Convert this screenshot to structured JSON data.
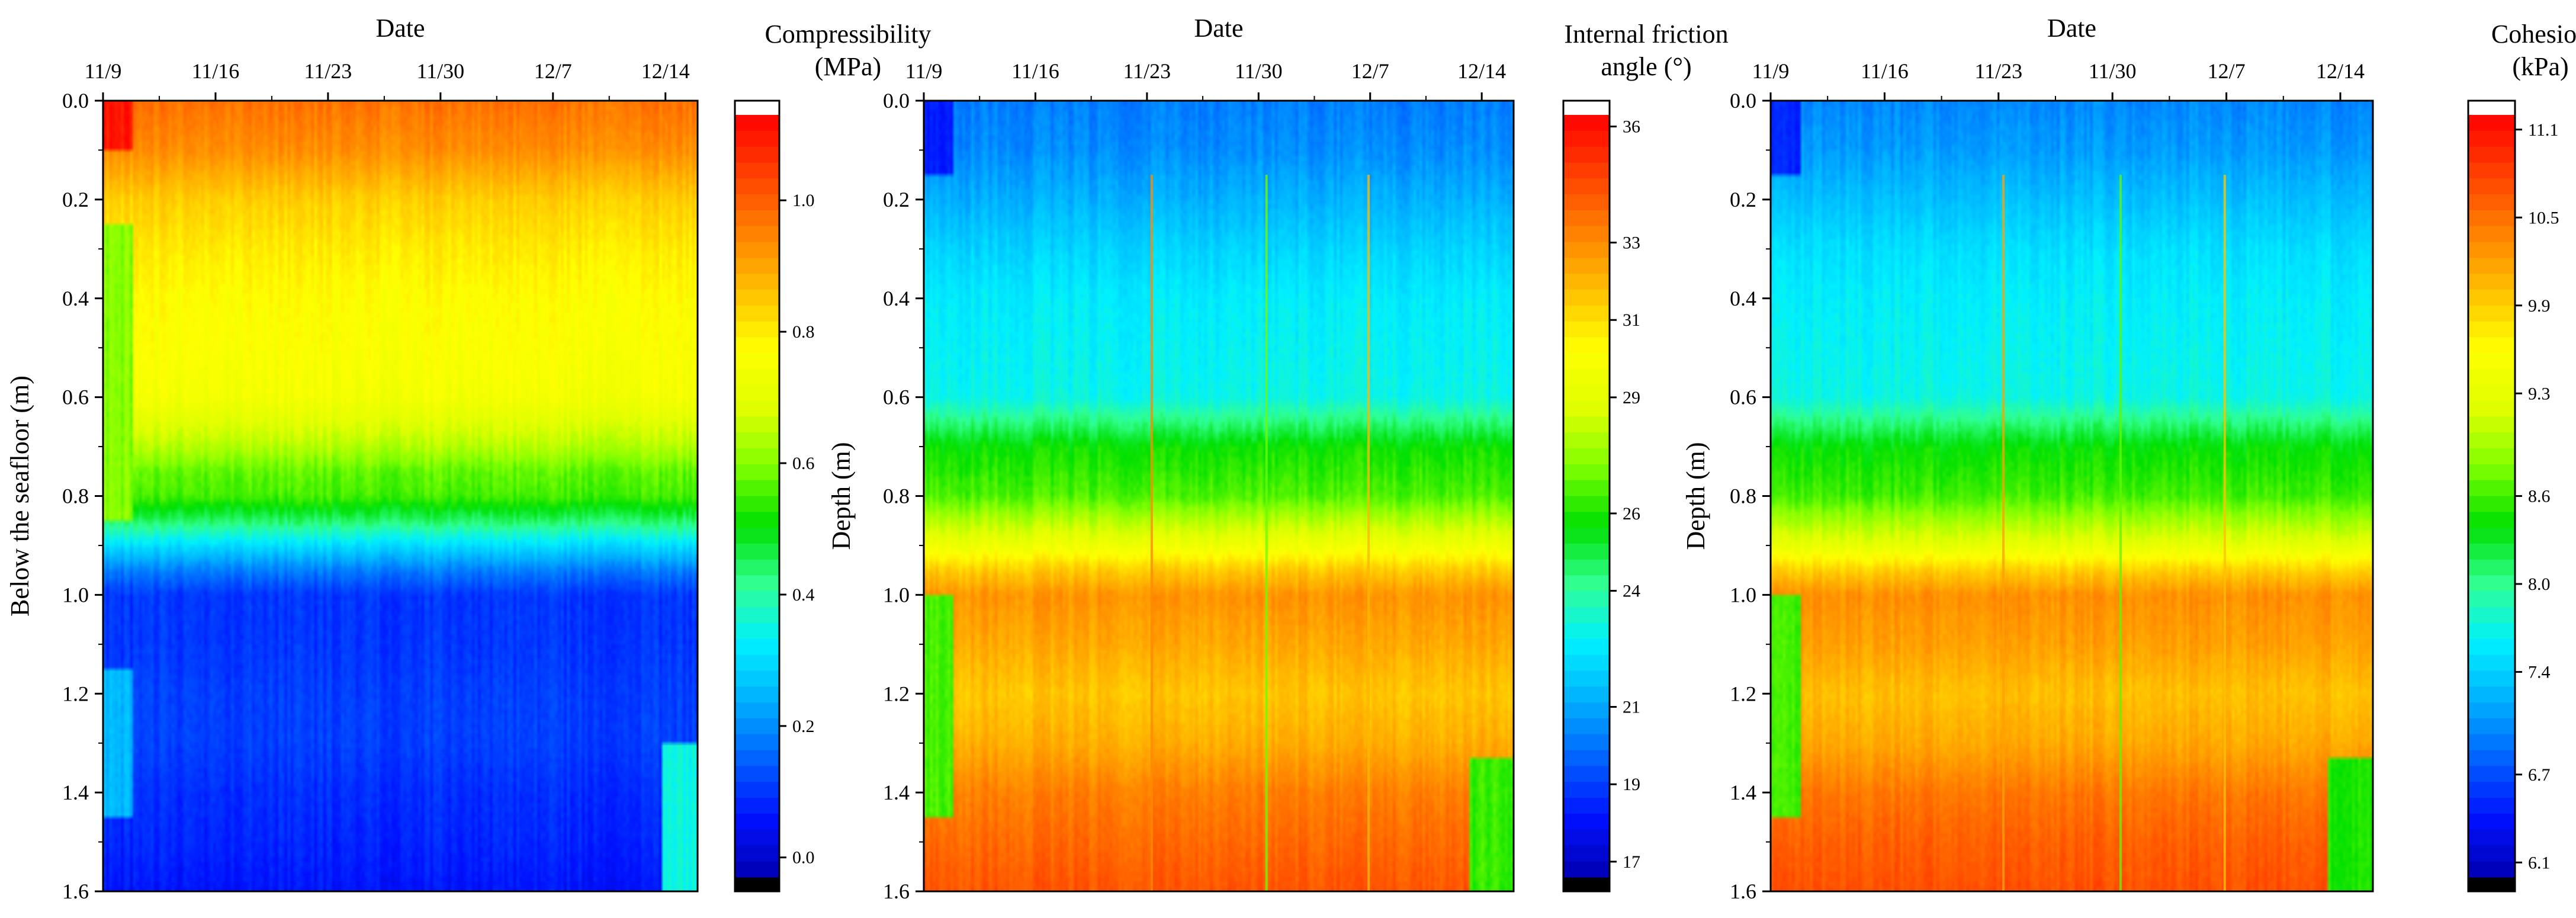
{
  "figure": {
    "panels": 3,
    "colorbar_palette": [
      "#000000",
      "#0000b0",
      "#0010ff",
      "#0060ff",
      "#00b0ff",
      "#00f0ff",
      "#30ff90",
      "#00e000",
      "#80ff00",
      "#e0ff00",
      "#ffff00",
      "#ffc000",
      "#ff8000",
      "#ff4000",
      "#ff0000",
      "#ffffff"
    ]
  },
  "chart_data": [
    {
      "type": "heatmap",
      "title": "",
      "xlabel": "Date",
      "ylabel": "Below the seafloor (m)",
      "x_tick_labels": [
        "11/9",
        "11/16",
        "11/23",
        "11/30",
        "12/7",
        "12/14"
      ],
      "x_tick_days": [
        0,
        7,
        14,
        21,
        28,
        35
      ],
      "x_range_days": [
        0,
        37
      ],
      "y_tick_labels": [
        "0.0",
        "0.2",
        "0.4",
        "0.6",
        "0.8",
        "1.0",
        "1.2",
        "1.4",
        "1.6"
      ],
      "ylim": [
        0,
        1.6
      ],
      "y_inverted": true,
      "colorbar": {
        "title_lines": [
          "Compressibility",
          "(MPa)"
        ],
        "ticks": [
          "0.0",
          "0.2",
          "0.4",
          "0.6",
          "0.8",
          "1.0"
        ],
        "tick_values": [
          0,
          0.2,
          0.4,
          0.6,
          0.8,
          1.0
        ],
        "range": [
          -0.03,
          1.13
        ]
      },
      "depth_profile": {
        "depths": [
          0.0,
          0.1,
          0.2,
          0.3,
          0.4,
          0.5,
          0.6,
          0.7,
          0.75,
          0.8,
          0.85,
          0.9,
          0.95,
          1.0,
          1.1,
          1.2,
          1.3,
          1.4,
          1.5,
          1.6
        ],
        "values": [
          0.97,
          0.93,
          0.84,
          0.8,
          0.77,
          0.76,
          0.74,
          0.64,
          0.57,
          0.55,
          0.44,
          0.3,
          0.18,
          0.1,
          0.1,
          0.11,
          0.11,
          0.09,
          0.08,
          0.06
        ]
      },
      "anomalies": [
        {
          "name": "early-period surface spike",
          "days": [
            0,
            1.8
          ],
          "depths": [
            0.0,
            0.1
          ],
          "value": 1.1
        },
        {
          "name": "early-period mid layer",
          "days": [
            0,
            1.8
          ],
          "depths": [
            0.25,
            0.85
          ],
          "value": 0.6
        },
        {
          "name": "early-period lower layer",
          "days": [
            0,
            1.8
          ],
          "depths": [
            1.15,
            1.45
          ],
          "value": 0.25
        },
        {
          "name": "end-period bottom patch",
          "days": [
            34.8,
            37
          ],
          "depths": [
            1.3,
            1.6
          ],
          "value": 0.35
        }
      ],
      "vertical_streaks": []
    },
    {
      "type": "heatmap",
      "title": "",
      "xlabel": "Date",
      "ylabel": "Depth (m)",
      "x_tick_labels": [
        "11/9",
        "11/16",
        "11/23",
        "11/30",
        "12/7",
        "12/14"
      ],
      "x_tick_days": [
        0,
        7,
        14,
        21,
        28,
        35
      ],
      "x_range_days": [
        0,
        37
      ],
      "y_tick_labels": [
        "0.0",
        "0.2",
        "0.4",
        "0.6",
        "0.8",
        "1.0",
        "1.2",
        "1.4",
        "1.6"
      ],
      "ylim": [
        0,
        1.6
      ],
      "y_inverted": true,
      "colorbar": {
        "title_lines": [
          "Internal friction",
          "angle (°)"
        ],
        "ticks": [
          "17",
          "19",
          "21",
          "24",
          "26",
          "29",
          "31",
          "33",
          "36"
        ],
        "tick_values": [
          17,
          19,
          21,
          24,
          26,
          29,
          31,
          33,
          36
        ],
        "range": [
          16.6,
          36.3
        ]
      },
      "depth_profile": {
        "depths": [
          0.0,
          0.1,
          0.2,
          0.3,
          0.4,
          0.5,
          0.6,
          0.7,
          0.8,
          0.9,
          0.95,
          1.0,
          1.1,
          1.2,
          1.3,
          1.4,
          1.5,
          1.6
        ],
        "values": [
          20.2,
          20.5,
          21.2,
          22.0,
          22.6,
          22.8,
          23.0,
          25.8,
          26.6,
          29.5,
          31.5,
          32.8,
          32.3,
          31.6,
          32.2,
          33.3,
          33.8,
          34.3
        ]
      },
      "anomalies": [
        {
          "name": "early-period surface low",
          "days": [
            0,
            1.8
          ],
          "depths": [
            0.0,
            0.15
          ],
          "value": 18.3
        },
        {
          "name": "early-period lower layer",
          "days": [
            0,
            1.8
          ],
          "depths": [
            1.0,
            1.45
          ],
          "value": 26.5
        },
        {
          "name": "end-period bottom patch",
          "days": [
            34.2,
            37
          ],
          "depths": [
            1.33,
            1.6
          ],
          "value": 26.3
        }
      ],
      "vertical_streaks": [
        {
          "day": 14.3,
          "value": 33.0
        },
        {
          "day": 21.5,
          "value": 27.0
        },
        {
          "day": 27.9,
          "value": 32.0
        }
      ]
    },
    {
      "type": "heatmap",
      "title": "",
      "xlabel": "Date",
      "ylabel": "Depth (m)",
      "x_tick_labels": [
        "11/9",
        "11/16",
        "11/23",
        "11/30",
        "12/7",
        "12/14"
      ],
      "x_tick_days": [
        0,
        7,
        14,
        21,
        28,
        35
      ],
      "x_range_days": [
        0,
        37
      ],
      "y_tick_labels": [
        "0.0",
        "0.2",
        "0.4",
        "0.6",
        "0.8",
        "1.0",
        "1.2",
        "1.4",
        "1.6"
      ],
      "ylim": [
        0,
        1.6
      ],
      "y_inverted": true,
      "colorbar": {
        "title_lines": [
          "Cohesion",
          "(kPa)"
        ],
        "ticks": [
          "6.1",
          "6.7",
          "7.4",
          "8.0",
          "8.6",
          "9.3",
          "9.9",
          "10.5",
          "11.1"
        ],
        "tick_values": [
          6.1,
          6.7,
          7.4,
          8.0,
          8.6,
          9.3,
          9.9,
          10.5,
          11.1
        ],
        "range": [
          6.0,
          11.2
        ]
      },
      "depth_profile": {
        "depths": [
          0.0,
          0.1,
          0.2,
          0.3,
          0.4,
          0.5,
          0.6,
          0.7,
          0.8,
          0.9,
          0.95,
          1.0,
          1.1,
          1.2,
          1.3,
          1.4,
          1.5,
          1.6
        ],
        "values": [
          7.0,
          7.1,
          7.3,
          7.5,
          7.6,
          7.65,
          7.7,
          8.4,
          8.6,
          9.3,
          9.9,
          10.3,
          10.2,
          10.0,
          10.15,
          10.45,
          10.6,
          10.7
        ]
      },
      "anomalies": [
        {
          "name": "early-period surface low",
          "days": [
            0,
            1.8
          ],
          "depths": [
            0.0,
            0.15
          ],
          "value": 6.5
        },
        {
          "name": "early-period lower layer",
          "days": [
            0,
            1.8
          ],
          "depths": [
            1.0,
            1.45
          ],
          "value": 8.6
        },
        {
          "name": "end-period bottom patch",
          "days": [
            34.2,
            37
          ],
          "depths": [
            1.33,
            1.6
          ],
          "value": 8.5
        }
      ],
      "vertical_streaks": [
        {
          "day": 14.3,
          "value": 10.2
        },
        {
          "day": 21.5,
          "value": 8.7
        },
        {
          "day": 27.9,
          "value": 10.0
        }
      ]
    }
  ]
}
